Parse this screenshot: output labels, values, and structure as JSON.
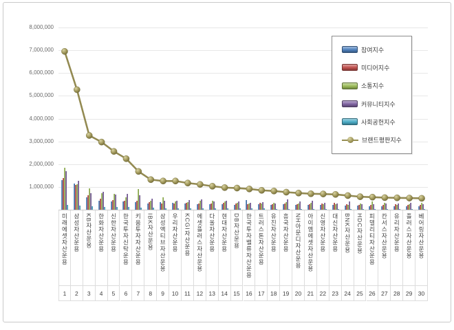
{
  "chart_data": {
    "type": "bar+line",
    "title": "",
    "xlabel": "",
    "ylabel": "",
    "ylim": [
      0,
      8000000
    ],
    "y_ticks": [
      1000000,
      2000000,
      3000000,
      4000000,
      5000000,
      6000000,
      7000000,
      8000000
    ],
    "grid": true,
    "legend_position": "upper right",
    "categories": [
      {
        "rank": "1",
        "name": "미래에셋자산운용"
      },
      {
        "rank": "2",
        "name": "삼성자산운용"
      },
      {
        "rank": "3",
        "name": "KB자산운용"
      },
      {
        "rank": "4",
        "name": "한화자산운용"
      },
      {
        "rank": "5",
        "name": "신한자산운용"
      },
      {
        "rank": "6",
        "name": "한국투자신탁운용"
      },
      {
        "rank": "7",
        "name": "키움투자자산운용"
      },
      {
        "rank": "8",
        "name": "IBK자산운용"
      },
      {
        "rank": "9",
        "name": "삼성액티브자산운용"
      },
      {
        "rank": "10",
        "name": "우리자산운용"
      },
      {
        "rank": "11",
        "name": "KCGI자산운용"
      },
      {
        "rank": "12",
        "name": "에셋플러스자산운용"
      },
      {
        "rank": "13",
        "name": "다올자산운용"
      },
      {
        "rank": "14",
        "name": "현대자산운용"
      },
      {
        "rank": "15",
        "name": "DB자산운용"
      },
      {
        "rank": "16",
        "name": "한국투자밸류자산운용"
      },
      {
        "rank": "17",
        "name": "트러스톤자산운용"
      },
      {
        "rank": "18",
        "name": "유진자산운용"
      },
      {
        "rank": "19",
        "name": "흥국자산운용"
      },
      {
        "rank": "20",
        "name": "NH아문디자산운용"
      },
      {
        "rank": "21",
        "name": "아이엠에셋자산운용"
      },
      {
        "rank": "22",
        "name": "신영자산운용"
      },
      {
        "rank": "23",
        "name": "대신자산운용"
      },
      {
        "rank": "24",
        "name": "BNK자산운용"
      },
      {
        "rank": "25",
        "name": "HDC자산운용"
      },
      {
        "rank": "26",
        "name": "피델리티자산운용"
      },
      {
        "rank": "27",
        "name": "칸서스자산운용"
      },
      {
        "rank": "28",
        "name": "유리자산운용"
      },
      {
        "rank": "29",
        "name": "플러스자산운용"
      },
      {
        "rank": "30",
        "name": "베어링자산운용"
      }
    ],
    "series": [
      {
        "key": "participation",
        "name": "참여지수",
        "type": "bar",
        "color": "#4f81bd",
        "values": [
          1300000,
          1150000,
          530000,
          400000,
          370000,
          350000,
          330000,
          280000,
          330000,
          300000,
          280000,
          250000,
          250000,
          250000,
          220000,
          420000,
          250000,
          220000,
          250000,
          220000,
          200000,
          200000,
          200000,
          180000,
          180000,
          150000,
          150000,
          150000,
          150000,
          150000
        ]
      },
      {
        "key": "media",
        "name": "미디어지수",
        "type": "bar",
        "color": "#c0504d",
        "values": [
          1400000,
          1080000,
          620000,
          480000,
          420000,
          400000,
          390000,
          330000,
          280000,
          280000,
          300000,
          280000,
          280000,
          300000,
          280000,
          250000,
          300000,
          250000,
          280000,
          250000,
          240000,
          280000,
          300000,
          250000,
          220000,
          200000,
          220000,
          250000,
          200000,
          220000
        ]
      },
      {
        "key": "communication",
        "name": "소통지수",
        "type": "bar",
        "color": "#9bbb59",
        "values": [
          1850000,
          1120000,
          940000,
          730000,
          700000,
          550000,
          900000,
          380000,
          550000,
          350000,
          320000,
          380000,
          400000,
          350000,
          300000,
          280000,
          280000,
          300000,
          320000,
          280000,
          300000,
          250000,
          250000,
          220000,
          280000,
          350000,
          300000,
          220000,
          250000,
          300000
        ]
      },
      {
        "key": "community",
        "name": "커뮤니티지수",
        "type": "bar",
        "color": "#8064a2",
        "values": [
          1700000,
          1280000,
          730000,
          780000,
          650000,
          700000,
          620000,
          480000,
          380000,
          400000,
          420000,
          450000,
          350000,
          380000,
          350000,
          300000,
          320000,
          280000,
          450000,
          350000,
          400000,
          300000,
          280000,
          350000,
          250000,
          250000,
          280000,
          280000,
          300000,
          250000
        ]
      },
      {
        "key": "social",
        "name": "사회공헌지수",
        "type": "bar",
        "color": "#4bacc6",
        "values": [
          220000,
          180000,
          150000,
          130000,
          120000,
          110000,
          100000,
          80000,
          70000,
          70000,
          60000,
          60000,
          60000,
          50000,
          50000,
          50000,
          50000,
          40000,
          40000,
          40000,
          40000,
          40000,
          30000,
          30000,
          30000,
          30000,
          30000,
          30000,
          30000,
          30000
        ]
      },
      {
        "key": "brand",
        "name": "브랜드평판지수",
        "type": "line",
        "color": "#948a54",
        "values": [
          6950000,
          5270000,
          3260000,
          2970000,
          2560000,
          2240000,
          1680000,
          1320000,
          1260000,
          1260000,
          1170000,
          1110000,
          1030000,
          970000,
          950000,
          910000,
          850000,
          820000,
          770000,
          730000,
          700000,
          690000,
          670000,
          620000,
          570000,
          550000,
          530000,
          520000,
          510000,
          500000
        ]
      }
    ]
  }
}
